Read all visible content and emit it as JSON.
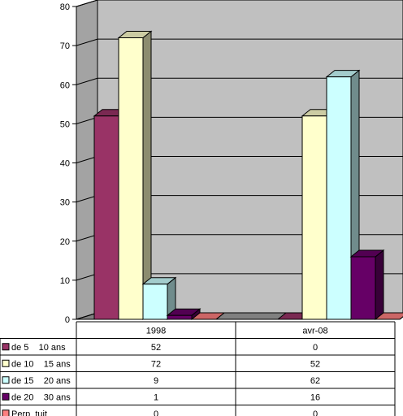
{
  "chart_data": {
    "type": "bar",
    "style": "3d-clustered-column-with-data-table",
    "categories": [
      "1998",
      "avr-08"
    ],
    "series": [
      {
        "name": "de 5    10 ans",
        "values": [
          52,
          0
        ],
        "color": "#993366"
      },
      {
        "name": "de 10    15 ans",
        "values": [
          72,
          52
        ],
        "color": "#ffffcc"
      },
      {
        "name": "de 15    20 ans",
        "values": [
          9,
          62
        ],
        "color": "#ccffff"
      },
      {
        "name": "de 20    30 ans",
        "values": [
          1,
          16
        ],
        "color": "#660066"
      },
      {
        "name": "Perp  tuit",
        "values": [
          0,
          0
        ],
        "color": "#ff8080"
      }
    ],
    "ylim": [
      0,
      80
    ],
    "yticks": [
      0,
      10,
      20,
      30,
      40,
      50,
      60,
      70,
      80
    ],
    "grid": true,
    "wall_color": "#c0c0c0",
    "floor_color": "#808080",
    "legend_placement": "data-table-left"
  }
}
